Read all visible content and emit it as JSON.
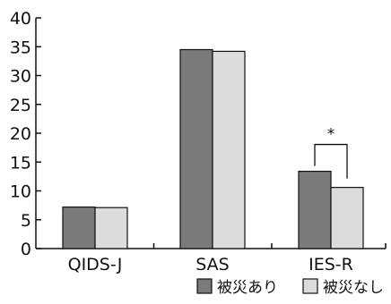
{
  "chart_data": {
    "type": "bar",
    "categories": [
      "QIDS-J",
      "SAS",
      "IES-R"
    ],
    "series": [
      {
        "name": "被災あり",
        "values": [
          7.2,
          34.5,
          13.4
        ],
        "color": "#7a7a7a"
      },
      {
        "name": "被災なし",
        "values": [
          7.1,
          34.2,
          10.6
        ],
        "color": "#dcdcdc"
      }
    ],
    "ylim": [
      0,
      40
    ],
    "yticks": [
      0,
      5,
      10,
      15,
      20,
      25,
      30,
      35,
      40
    ],
    "grid": false,
    "legend_position": "bottom-right",
    "annotations": [
      {
        "category": "IES-R",
        "text": "*",
        "type": "significance-bracket"
      }
    ],
    "title": "",
    "xlabel": "",
    "ylabel": ""
  }
}
